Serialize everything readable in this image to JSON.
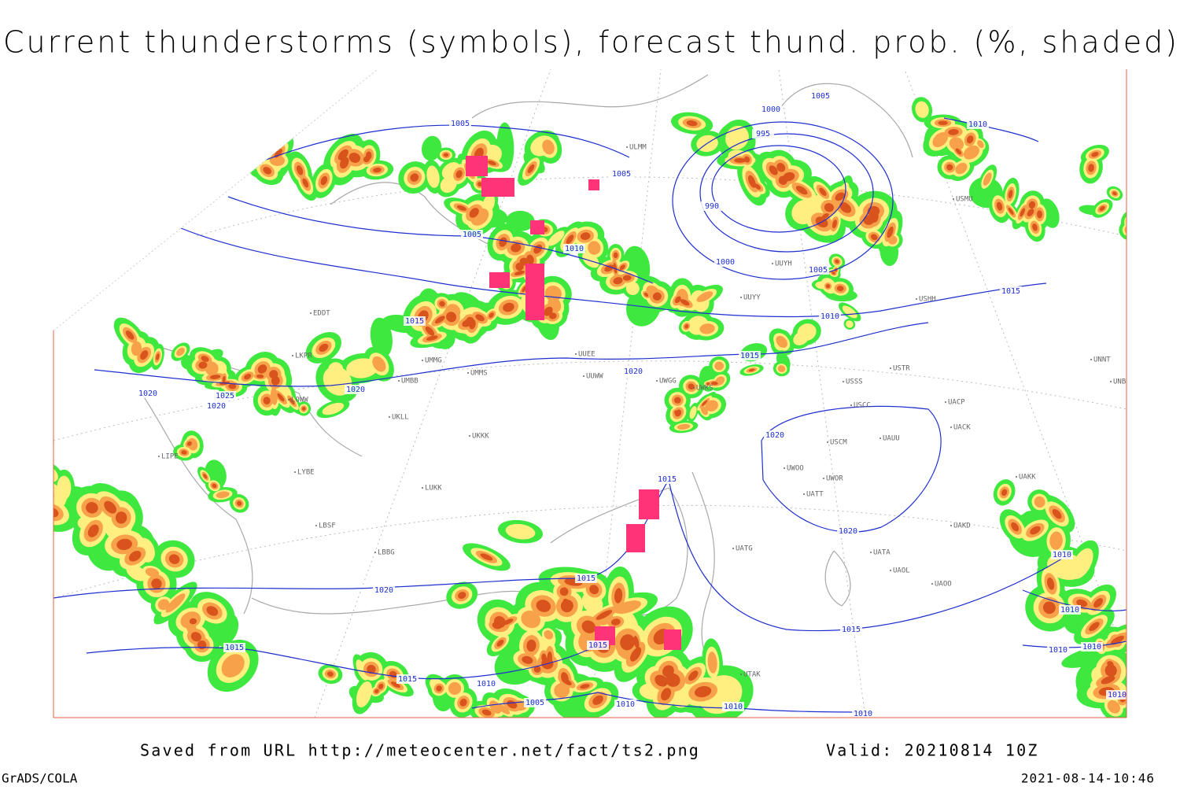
{
  "header": {
    "title": "Current thunderstorms (symbols), forecast thund. prob. (%, shaded)"
  },
  "footer": {
    "saved": "Saved from URL http://meteocenter.net/fact/ts2.png",
    "valid": "Valid: 20210814 10Z",
    "software": "GrADS/COLA",
    "timestamp": "2021-08-14-10:46"
  },
  "isobar_labels": [
    "1005",
    "1000",
    "1005",
    "995",
    "990",
    "1000",
    "1005",
    "1005",
    "1005",
    "1010",
    "1010",
    "1015",
    "1010",
    "1015",
    "1015",
    "1020",
    "1020",
    "1020",
    "1025",
    "1020",
    "1020",
    "1015",
    "1020",
    "1015",
    "1020",
    "1015",
    "1015",
    "1010",
    "1015",
    "1005",
    "1010",
    "1010",
    "1015",
    "1010",
    "1010",
    "1010",
    "1010",
    "1010",
    "1010"
  ],
  "stations": [
    "EDDT",
    "LKPR",
    "LOWW",
    "LIPE",
    "LYBE",
    "LBSF",
    "LBBG",
    "LUKK",
    "UKKK",
    "UKLL",
    "UMMS",
    "UMMG",
    "UMBB",
    "UUWW",
    "UUEE",
    "UWGG",
    "UWKS",
    "UUYY",
    "USSS",
    "USTR",
    "USCC",
    "USCM",
    "UAUU",
    "UACK",
    "UAKK",
    "UATT",
    "UWOO",
    "UWOR",
    "UATG",
    "UAKD",
    "UATA",
    "UAOL",
    "UAOO",
    "UTAK",
    "USHH",
    "USMU",
    "UNNT",
    "UNBB",
    "UACP",
    "UUYH",
    "ULMM"
  ]
}
